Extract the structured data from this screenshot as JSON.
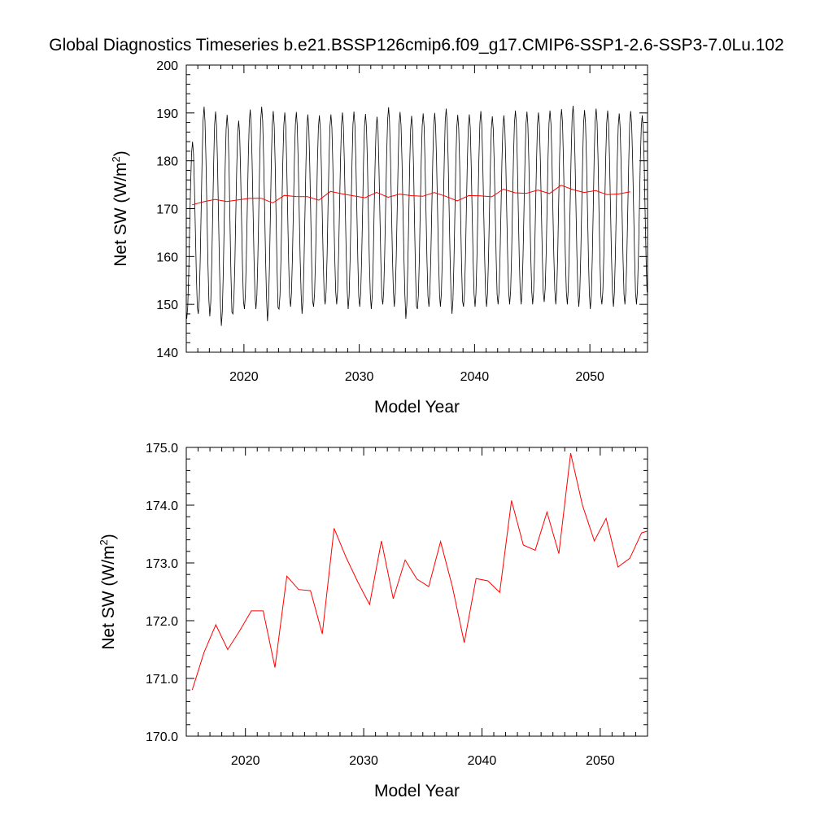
{
  "title": "Global Diagnostics Timeseries b.e21.BSSP126cmip6.f09_g17.CMIP6-SSP1-2.6-SSP3-7.0Lu.102",
  "colors": {
    "monthly": "#000000",
    "annual": "#ff0000"
  },
  "chart_data": [
    {
      "type": "line",
      "xlabel": "Model Year",
      "ylabel_main": "Net SW (W/m",
      "ylabel_sup": "2",
      "ylabel_close": ")",
      "xlim": [
        2015,
        2055
      ],
      "ylim": [
        140,
        200
      ],
      "xticks": [
        2020,
        2030,
        2040,
        2050
      ],
      "yticks": [
        140,
        150,
        160,
        170,
        180,
        190,
        200
      ],
      "monthly_range": {
        "years": [
          2015,
          2016,
          2017,
          2018,
          2019,
          2020,
          2021,
          2022,
          2023,
          2024,
          2025,
          2026,
          2027,
          2028,
          2029,
          2030,
          2031,
          2032,
          2033,
          2034,
          2035,
          2036,
          2037,
          2038,
          2039,
          2040,
          2041,
          2042,
          2043,
          2044,
          2045,
          2046,
          2047,
          2048,
          2049,
          2050,
          2051,
          2052,
          2053,
          2054
        ],
        "min": [
          147,
          148,
          147.5,
          145.5,
          148,
          149,
          149,
          146.5,
          149,
          149.5,
          148,
          149.5,
          150,
          150,
          149,
          149.5,
          149,
          150,
          149.5,
          147,
          149,
          149.5,
          149.5,
          148,
          149.5,
          149.5,
          149.5,
          150,
          150,
          150,
          150,
          150.5,
          150,
          150,
          149.5,
          149,
          150,
          149.5,
          150,
          150
        ],
        "max": [
          184,
          191.3,
          190.3,
          189.6,
          188.4,
          190.7,
          191.3,
          190.4,
          190.1,
          190.2,
          189.7,
          189.5,
          189.7,
          190.1,
          190.3,
          189.8,
          189.2,
          191.2,
          190.2,
          189.4,
          189.9,
          190.0,
          190.9,
          189.6,
          189.7,
          190.4,
          189.3,
          189.5,
          190.5,
          190.3,
          190.1,
          190.5,
          190.8,
          191.5,
          190.6,
          190.9,
          190.5,
          189.9,
          190.4,
          189.5
        ]
      },
      "annual_mean": {
        "x": [
          2015.5,
          2016.5,
          2017.5,
          2018.5,
          2019.5,
          2020.5,
          2021.5,
          2022.5,
          2023.5,
          2024.5,
          2025.5,
          2026.5,
          2027.5,
          2028.5,
          2029.5,
          2030.5,
          2031.5,
          2032.5,
          2033.5,
          2034.5,
          2035.5,
          2036.5,
          2037.5,
          2038.5,
          2039.5,
          2040.5,
          2041.5,
          2042.5,
          2043.5,
          2044.5,
          2045.5,
          2046.5,
          2047.5,
          2048.5,
          2049.5,
          2050.5,
          2051.5,
          2052.5,
          2053.5
        ],
        "y": [
          170.8,
          171.45,
          171.93,
          171.5,
          171.82,
          172.17,
          172.17,
          171.19,
          172.77,
          172.54,
          172.52,
          171.77,
          173.6,
          173.1,
          172.67,
          172.28,
          173.38,
          172.38,
          173.05,
          172.72,
          172.59,
          173.37,
          172.59,
          171.62,
          172.73,
          172.69,
          172.49,
          174.08,
          173.31,
          173.22,
          173.88,
          173.16,
          174.9,
          174.0,
          173.38,
          173.77,
          172.93,
          173.08,
          173.52
        ]
      }
    },
    {
      "type": "line",
      "xlabel": "Model Year",
      "ylabel_main": "Net SW (W/m",
      "ylabel_sup": "2",
      "ylabel_close": ")",
      "xlim": [
        2015,
        2054
      ],
      "ylim": [
        170.0,
        175.0
      ],
      "xticks": [
        2020,
        2030,
        2040,
        2050
      ],
      "yticks": [
        170.0,
        171.0,
        172.0,
        173.0,
        174.0,
        175.0
      ],
      "ytick_labels": [
        "170.0",
        "171.0",
        "172.0",
        "173.0",
        "174.0",
        "175.0"
      ],
      "series": [
        {
          "x": [
            2015.5,
            2016.5,
            2017.5,
            2018.5,
            2019.5,
            2020.5,
            2021.5,
            2022.5,
            2023.5,
            2024.5,
            2025.5,
            2026.5,
            2027.5,
            2028.5,
            2029.5,
            2030.5,
            2031.5,
            2032.5,
            2033.5,
            2034.5,
            2035.5,
            2036.5,
            2037.5,
            2038.5,
            2039.5,
            2040.5,
            2041.5,
            2042.5,
            2043.5,
            2044.5,
            2045.5,
            2046.5,
            2047.5,
            2048.5,
            2049.5,
            2050.5,
            2051.5,
            2052.5,
            2053.5,
            2054
          ],
          "y": [
            170.8,
            171.45,
            171.93,
            171.5,
            171.82,
            172.17,
            172.17,
            171.19,
            172.77,
            172.54,
            172.52,
            171.77,
            173.6,
            173.1,
            172.67,
            172.28,
            173.38,
            172.38,
            173.05,
            172.72,
            172.59,
            173.37,
            172.59,
            171.62,
            172.73,
            172.69,
            172.49,
            174.08,
            173.31,
            173.22,
            173.88,
            173.16,
            174.9,
            174.0,
            173.38,
            173.77,
            172.93,
            173.08,
            173.52,
            173.55
          ]
        }
      ]
    }
  ]
}
